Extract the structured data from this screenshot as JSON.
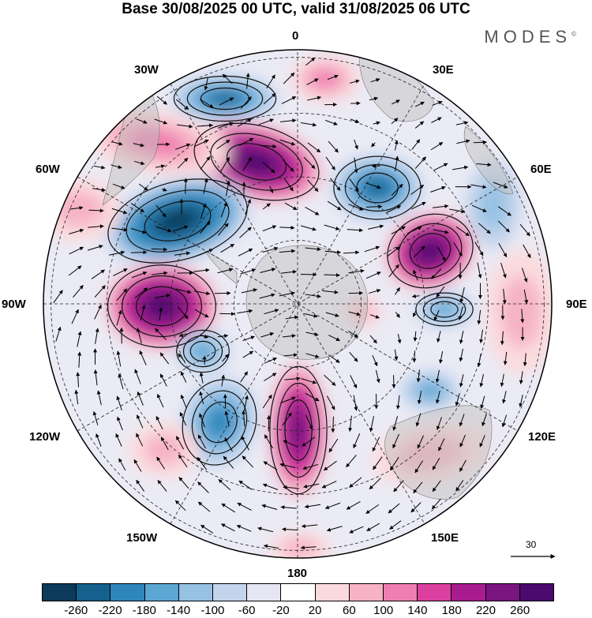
{
  "title": "Base 30/08/2025 00 UTC, valid 31/08/2025 06 UTC",
  "brand": {
    "name": "MODES",
    "mark": "©"
  },
  "longitude_labels": {
    "deg0": "0",
    "deg30e": "30E",
    "deg60e": "60E",
    "deg90e": "90E",
    "deg120e": "120E",
    "deg150e": "150E",
    "deg180": "180",
    "deg150w": "150W",
    "deg120w": "120W",
    "deg90w": "90W",
    "deg60w": "60W",
    "deg30w": "30W"
  },
  "vector_scale": {
    "label": "30"
  },
  "colorbar": {
    "colors": [
      "#0b3a5a",
      "#15608c",
      "#2f86bb",
      "#5ca6d4",
      "#97c2e4",
      "#c4d4ec",
      "#e6e6f3",
      "#ffffff",
      "#fbdadd",
      "#f6b2c6",
      "#ef7fb0",
      "#db3fa0",
      "#a81c8f",
      "#7a1580",
      "#4b0a6e"
    ],
    "ticks": [
      "-260",
      "-220",
      "-180",
      "-140",
      "-100",
      "-60",
      "-20",
      "20",
      "60",
      "100",
      "140",
      "180",
      "220",
      "260"
    ]
  }
}
